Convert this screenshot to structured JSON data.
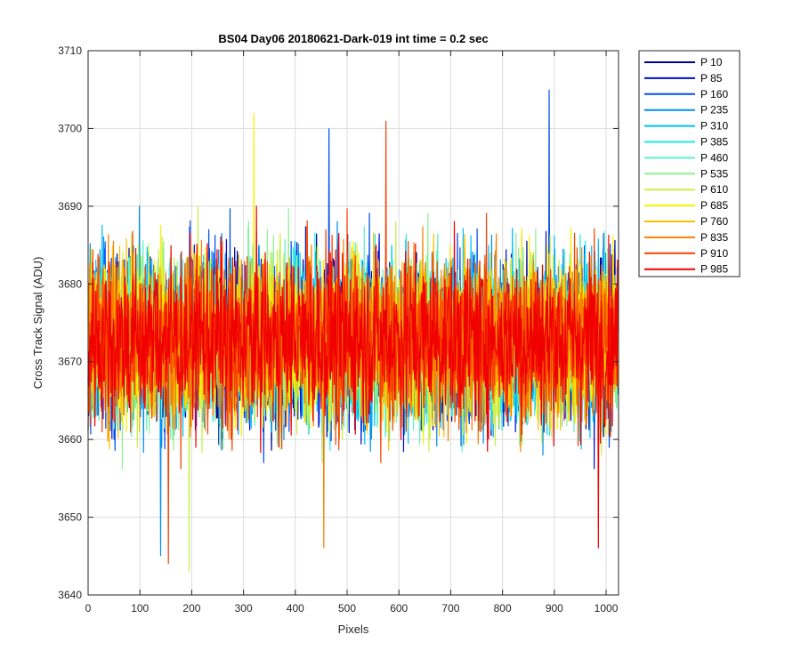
{
  "chart_data": {
    "type": "line",
    "title": "BS04 Day06 20180621-Dark-019 int time = 0.2 sec",
    "xlabel": "Pixels",
    "ylabel": "Cross Track Signal (ADU)",
    "xlim": [
      0,
      1024
    ],
    "ylim": [
      3640,
      3710
    ],
    "xticks": [
      "0",
      "100",
      "200",
      "300",
      "400",
      "500",
      "600",
      "700",
      "800",
      "900",
      "1000"
    ],
    "yticks": [
      "3640",
      "3650",
      "3660",
      "3670",
      "3680",
      "3690",
      "3700",
      "3710"
    ],
    "grid": true,
    "legend_position": "outside-right",
    "series_summary": {
      "points_per_series": 1024,
      "approx_mean": 3673,
      "approx_min": 3643,
      "approx_max": 3705,
      "note": "noise-like dark signal; values fluctuate roughly between 3660 and 3688"
    },
    "series": [
      {
        "name": "P 10",
        "color": "#00008f"
      },
      {
        "name": "P 85",
        "color": "#0010d4"
      },
      {
        "name": "P 160",
        "color": "#0050e6"
      },
      {
        "name": "P 235",
        "color": "#0090f0"
      },
      {
        "name": "P 310",
        "color": "#00c0f8"
      },
      {
        "name": "P 385",
        "color": "#20e8e8"
      },
      {
        "name": "P 460",
        "color": "#60f0c8"
      },
      {
        "name": "P 535",
        "color": "#90f090"
      },
      {
        "name": "P 610",
        "color": "#c8f048"
      },
      {
        "name": "P 685",
        "color": "#f8f000"
      },
      {
        "name": "P 760",
        "color": "#f8c000"
      },
      {
        "name": "P 835",
        "color": "#f88000"
      },
      {
        "name": "P 910",
        "color": "#f84000"
      },
      {
        "name": "P 985",
        "color": "#f00000"
      }
    ],
    "spikes": [
      {
        "series": "P 160",
        "x": 890,
        "y": 3705
      },
      {
        "series": "P 685",
        "x": 320,
        "y": 3702
      },
      {
        "series": "P 910",
        "x": 575,
        "y": 3701
      },
      {
        "series": "P 160",
        "x": 465,
        "y": 3700
      },
      {
        "series": "P 610",
        "x": 195,
        "y": 3643
      },
      {
        "series": "P 910",
        "x": 155,
        "y": 3644
      },
      {
        "series": "P 985",
        "x": 985,
        "y": 3646
      },
      {
        "series": "P 835",
        "x": 455,
        "y": 3646
      },
      {
        "series": "P 235",
        "x": 140,
        "y": 3645
      }
    ]
  }
}
